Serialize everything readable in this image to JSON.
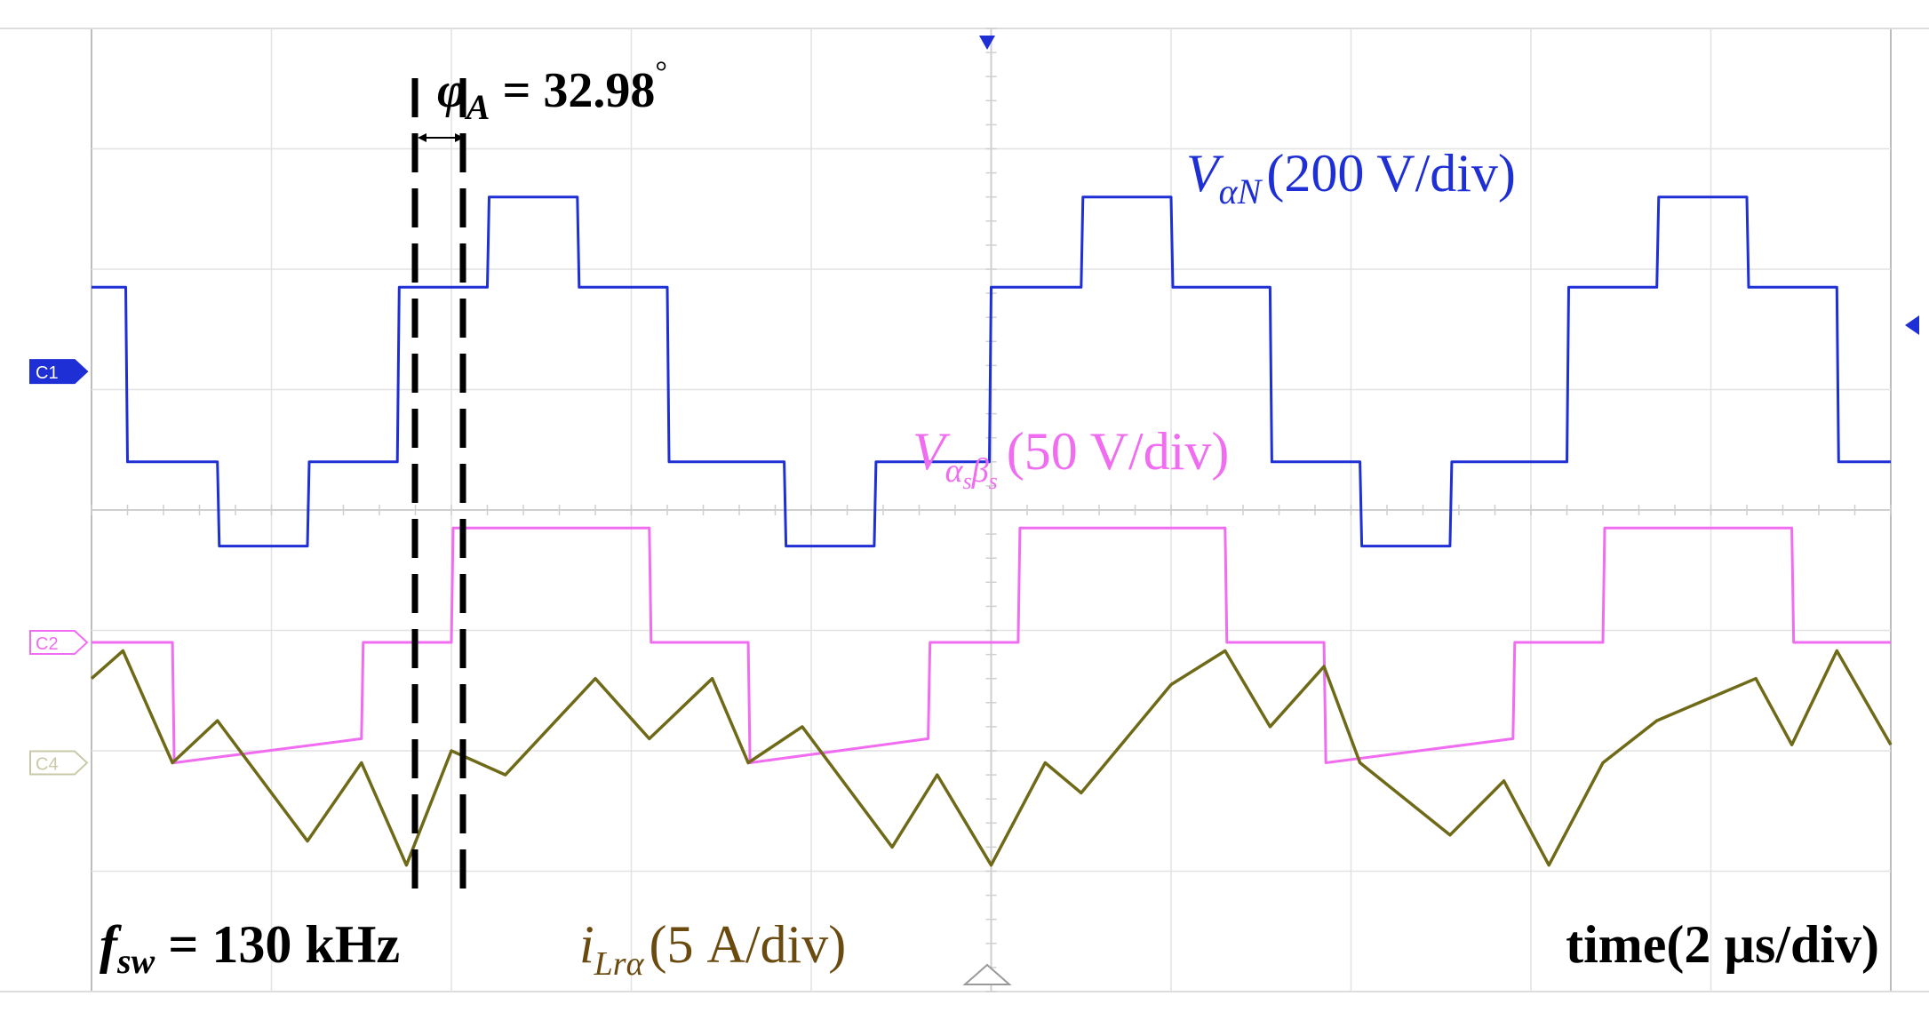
{
  "chart_data": {
    "type": "line",
    "title": "",
    "xlabel": "time(2 µs/div)",
    "ylabel": "",
    "grid": true,
    "x_divisions": 10,
    "y_divisions": 8,
    "x_unit_per_div_us": 2,
    "xlim_us": [
      0,
      20
    ],
    "phase_annotation": {
      "symbol": "φ",
      "subscript": "A",
      "value_text": " = 32.98",
      "degree": "°"
    },
    "switching_frequency": {
      "symbol": "f",
      "subscript": "sw",
      "value_text": " = 130 kHz"
    },
    "channel_markers": [
      {
        "id": "C1",
        "color": "#1f2fd6"
      },
      {
        "id": "C2",
        "color": "#f06cf0"
      },
      {
        "id": "C4",
        "color": "#c9c9a8"
      }
    ],
    "series": [
      {
        "name": "V_αN",
        "label_main": "V",
        "label_sub": "αN",
        "label_scale": "(200 V/div)",
        "channel": "C1",
        "color": "#1f2fd6",
        "scale_per_div": "200 V/div",
        "offset_div": 2.85,
        "points_us_div": [
          [
            0,
            0.7
          ],
          [
            0.38,
            0.7
          ],
          [
            0.4,
            -0.75
          ],
          [
            1.4,
            -0.75
          ],
          [
            1.42,
            -1.45
          ],
          [
            2.4,
            -1.45
          ],
          [
            2.42,
            -0.75
          ],
          [
            3.4,
            -0.75
          ],
          [
            3.42,
            0.7
          ],
          [
            4.4,
            0.7
          ],
          [
            4.42,
            1.45
          ],
          [
            5.4,
            1.45
          ],
          [
            5.42,
            0.7
          ],
          [
            6.4,
            0.7
          ],
          [
            6.42,
            -0.75
          ],
          [
            7.7,
            -0.75
          ],
          [
            7.72,
            -1.45
          ],
          [
            8.7,
            -1.45
          ],
          [
            8.72,
            -0.75
          ],
          [
            9.98,
            -0.75
          ],
          [
            10.0,
            0.7
          ],
          [
            11.0,
            0.7
          ],
          [
            11.02,
            1.45
          ],
          [
            12.0,
            1.45
          ],
          [
            12.02,
            0.7
          ],
          [
            13.1,
            0.7
          ],
          [
            13.12,
            -0.75
          ],
          [
            14.1,
            -0.75
          ],
          [
            14.12,
            -1.45
          ],
          [
            15.1,
            -1.45
          ],
          [
            15.12,
            -0.75
          ],
          [
            16.4,
            -0.75
          ],
          [
            16.42,
            0.7
          ],
          [
            17.4,
            0.7
          ],
          [
            17.42,
            1.45
          ],
          [
            18.4,
            1.45
          ],
          [
            18.42,
            0.7
          ],
          [
            19.4,
            0.7
          ],
          [
            19.42,
            -0.75
          ],
          [
            20,
            -0.75
          ]
        ]
      },
      {
        "name": "V_αsβs",
        "label_main": "V",
        "label_sub1": "α",
        "label_sub1_sub": "s",
        "label_sub2": "β",
        "label_sub2_sub": "s",
        "label_scale": "(50 V/div)",
        "channel": "C2",
        "color": "#f06cf0",
        "scale_per_div": "50 V/div",
        "offset_div": 5.1,
        "points_us_div": [
          [
            0,
            0
          ],
          [
            0.9,
            0
          ],
          [
            0.92,
            -1.0
          ],
          [
            3.0,
            -0.8
          ],
          [
            3.02,
            0
          ],
          [
            4.0,
            0
          ],
          [
            4.02,
            0.95
          ],
          [
            6.2,
            0.95
          ],
          [
            6.22,
            0
          ],
          [
            7.3,
            0
          ],
          [
            7.32,
            -1.0
          ],
          [
            9.3,
            -0.8
          ],
          [
            9.32,
            0
          ],
          [
            10.3,
            0
          ],
          [
            10.32,
            0.95
          ],
          [
            12.6,
            0.95
          ],
          [
            12.62,
            0
          ],
          [
            13.7,
            0
          ],
          [
            13.72,
            -1.0
          ],
          [
            15.8,
            -0.8
          ],
          [
            15.82,
            0
          ],
          [
            16.8,
            0
          ],
          [
            16.82,
            0.95
          ],
          [
            18.9,
            0.95
          ],
          [
            18.92,
            0
          ],
          [
            20,
            0
          ]
        ]
      },
      {
        "name": "i_Lrα",
        "label_main": "i",
        "label_sub": "Lrα",
        "label_scale": "(5 A/div)",
        "channel": "C4",
        "color": "#6f6a18",
        "scale_per_div": "5 A/div",
        "offset_div": 6.1,
        "points_us_div": [
          [
            0,
            0.7
          ],
          [
            0.35,
            0.93
          ],
          [
            0.9,
            0
          ],
          [
            1.4,
            0.35
          ],
          [
            2.4,
            -0.65
          ],
          [
            3.0,
            0
          ],
          [
            3.5,
            -0.85
          ],
          [
            4.0,
            0.1
          ],
          [
            4.6,
            -0.1
          ],
          [
            5.6,
            0.7
          ],
          [
            6.2,
            0.2
          ],
          [
            6.9,
            0.7
          ],
          [
            7.3,
            0
          ],
          [
            7.9,
            0.3
          ],
          [
            8.9,
            -0.7
          ],
          [
            9.4,
            -0.1
          ],
          [
            10.0,
            -0.85
          ],
          [
            10.6,
            0
          ],
          [
            11.0,
            -0.25
          ],
          [
            12.0,
            0.65
          ],
          [
            12.6,
            0.93
          ],
          [
            13.1,
            0.3
          ],
          [
            13.7,
            0.8
          ],
          [
            14.1,
            0
          ],
          [
            15.1,
            -0.6
          ],
          [
            15.7,
            -0.15
          ],
          [
            16.2,
            -0.85
          ],
          [
            16.8,
            0
          ],
          [
            17.4,
            0.35
          ],
          [
            18.5,
            0.7
          ],
          [
            18.9,
            0.15
          ],
          [
            19.4,
            0.93
          ],
          [
            20,
            0.15
          ]
        ]
      }
    ]
  }
}
